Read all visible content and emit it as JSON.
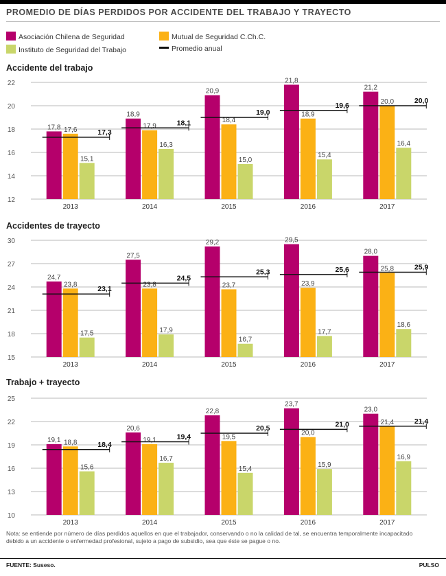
{
  "title": "PROMEDIO DE DÍAS PERDIDOS POR ACCIDENTE DEL TRABAJO Y TRAYECTO",
  "legend": {
    "achs": "Asociación Chilena de Seguridad",
    "mutual": "Mutual de Seguridad C.Ch.C.",
    "ist": "Instituto de Seguridad del Trabajo",
    "avg": "Promedio anual"
  },
  "colors": {
    "achs": "#b5006b",
    "mutual": "#fbb115",
    "ist": "#c9d66a",
    "avg": "#111111",
    "grid": "#b9b9b9"
  },
  "chart_data": [
    {
      "type": "bar",
      "title": "Accidente del trabajo",
      "categories": [
        "2013",
        "2014",
        "2015",
        "2016",
        "2017"
      ],
      "ylim": [
        12,
        22
      ],
      "yticks": [
        12,
        14,
        16,
        18,
        20,
        22
      ],
      "series": [
        {
          "name": "Asociación Chilena de Seguridad",
          "values": [
            17.8,
            18.9,
            20.9,
            21.8,
            21.2
          ],
          "labels": [
            "17,8",
            "18,9",
            "20,9",
            "21,8",
            "21,2"
          ]
        },
        {
          "name": "Mutual de Seguridad C.Ch.C.",
          "values": [
            17.6,
            17.9,
            18.4,
            18.9,
            20.0
          ],
          "labels": [
            "17,6",
            "17,9",
            "18,4",
            "18,9",
            "20,0"
          ]
        },
        {
          "name": "Instituto de Seguridad del Trabajo",
          "values": [
            15.1,
            16.3,
            15.0,
            15.4,
            16.4
          ],
          "labels": [
            "15,1",
            "16,3",
            "15,0",
            "15,4",
            "16,4"
          ]
        }
      ],
      "average": {
        "name": "Promedio anual",
        "values": [
          17.3,
          18.1,
          19.0,
          19.6,
          20.0
        ],
        "labels": [
          "17,3",
          "18,1",
          "19,0",
          "19,6",
          "20,0"
        ]
      },
      "grid": true
    },
    {
      "type": "bar",
      "title": "Accidentes de trayecto",
      "categories": [
        "2013",
        "2014",
        "2015",
        "2016",
        "2017"
      ],
      "ylim": [
        15,
        30
      ],
      "yticks": [
        15,
        18,
        21,
        24,
        27,
        30
      ],
      "series": [
        {
          "name": "Asociación Chilena de Seguridad",
          "values": [
            24.7,
            27.5,
            29.2,
            29.5,
            28.0
          ],
          "labels": [
            "24,7",
            "27,5",
            "29,2",
            "29,5",
            "28,0"
          ]
        },
        {
          "name": "Mutual de Seguridad C.Ch.C.",
          "values": [
            23.8,
            23.8,
            23.7,
            23.9,
            25.8
          ],
          "labels": [
            "23,8",
            "23,8",
            "23,7",
            "23,9",
            "25,8"
          ]
        },
        {
          "name": "Instituto de Seguridad del Trabajo",
          "values": [
            17.5,
            17.9,
            16.7,
            17.7,
            18.6
          ],
          "labels": [
            "17,5",
            "17,9",
            "16,7",
            "17,7",
            "18,6"
          ]
        }
      ],
      "average": {
        "name": "Promedio anual",
        "values": [
          23.1,
          24.5,
          25.3,
          25.6,
          25.9
        ],
        "labels": [
          "23,1",
          "24,5",
          "25,3",
          "25,6",
          "25,9"
        ]
      },
      "grid": true
    },
    {
      "type": "bar",
      "title": "Trabajo + trayecto",
      "categories": [
        "2013",
        "2014",
        "2015",
        "2016",
        "2017"
      ],
      "ylim": [
        10,
        25
      ],
      "yticks": [
        10,
        13,
        16,
        19,
        22,
        25
      ],
      "series": [
        {
          "name": "Asociación Chilena de Seguridad",
          "values": [
            19.1,
            20.6,
            22.8,
            23.7,
            23.0
          ],
          "labels": [
            "19,1",
            "20,6",
            "22,8",
            "23,7",
            "23,0"
          ]
        },
        {
          "name": "Mutual de Seguridad C.Ch.C.",
          "values": [
            18.8,
            19.1,
            19.5,
            20.0,
            21.4
          ],
          "labels": [
            "18,8",
            "19,1",
            "19,5",
            "20,0",
            "21,4"
          ]
        },
        {
          "name": "Instituto de Seguridad del Trabajo",
          "values": [
            15.6,
            16.7,
            15.4,
            15.9,
            16.9
          ],
          "labels": [
            "15,6",
            "16,7",
            "15,4",
            "15,9",
            "16,9"
          ]
        }
      ],
      "average": {
        "name": "Promedio anual",
        "values": [
          18.4,
          19.4,
          20.5,
          21.0,
          21.4
        ],
        "labels": [
          "18,4",
          "19,4",
          "20,5",
          "21,0",
          "21,4"
        ]
      },
      "grid": true
    }
  ],
  "note": "Nota: se entiende por número de días perdidos aquellos en que el trabajador, conservando o no la calidad de tal, se encuentra temporalmente incapacitado debido a un accidente o enfermedad profesional, sujeto a pago de subsidio, sea que éste se pague o no.",
  "source": "FUENTE: Suseso.",
  "brand": "PULSO"
}
